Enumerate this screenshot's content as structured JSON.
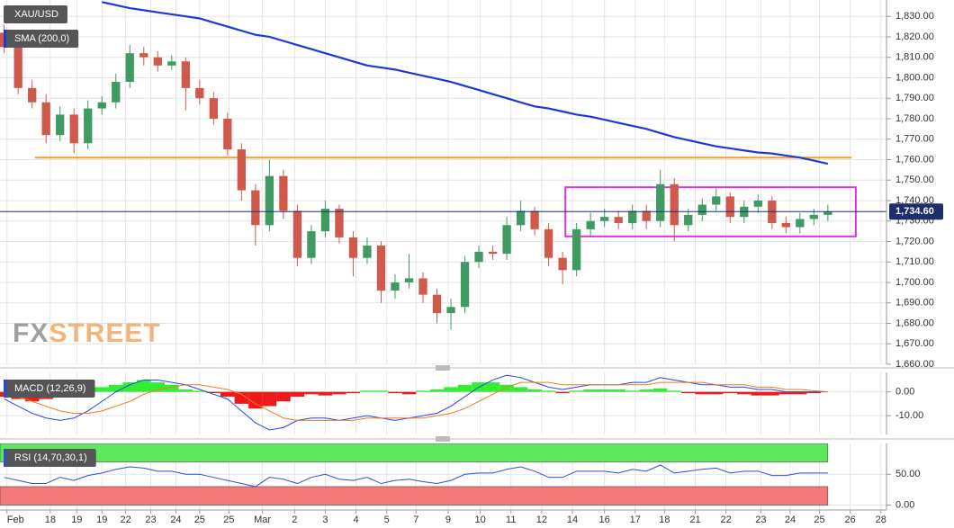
{
  "chart_data": [
    {
      "type": "candlestick",
      "title": "XAU/USD",
      "watermark": [
        "FX",
        "STREET"
      ],
      "watermark_colors": [
        "#a0a0a0",
        "#f2b47a"
      ],
      "ylim": [
        1660,
        1838
      ],
      "yticks": [
        {
          "value": 1660,
          "label": "1,660.00"
        },
        {
          "value": 1670,
          "label": "1,670.00"
        },
        {
          "value": 1680,
          "label": "1,680.00"
        },
        {
          "value": 1690,
          "label": "1,690.00"
        },
        {
          "value": 1700,
          "label": "1,700.00"
        },
        {
          "value": 1710,
          "label": "1,710.00"
        },
        {
          "value": 1720,
          "label": "1,720.00"
        },
        {
          "value": 1730,
          "label": "1,730.00"
        },
        {
          "value": 1740,
          "label": "1,740.00"
        },
        {
          "value": 1750,
          "label": "1,750.00"
        },
        {
          "value": 1760,
          "label": "1,760.00"
        },
        {
          "value": 1770,
          "label": "1,770.00"
        },
        {
          "value": 1780,
          "label": "1,780.00"
        },
        {
          "value": 1790,
          "label": "1,790.00"
        },
        {
          "value": 1800,
          "label": "1,800.00"
        },
        {
          "value": 1810,
          "label": "1,810.00"
        },
        {
          "value": 1820,
          "label": "1,820.00"
        },
        {
          "value": 1830,
          "label": "1,830.00"
        }
      ],
      "grid": true,
      "candles": {
        "up_color": "#3f9b62",
        "down_color": "#cf5a4c",
        "open": [
          1822,
          1815,
          1795,
          1788,
          1772,
          1782,
          1768,
          1785,
          1788,
          1798,
          1812,
          1810,
          1806,
          1808,
          1795,
          1790,
          1780,
          1765,
          1745,
          1728,
          1752,
          1735,
          1712,
          1725,
          1736,
          1722,
          1712,
          1718,
          1696,
          1700,
          1702,
          1694,
          1685,
          1688,
          1710,
          1715,
          1714,
          1728,
          1735,
          1726,
          1712,
          1706,
          1726,
          1730,
          1732,
          1729,
          1735,
          1730,
          1748,
          1728,
          1733,
          1738,
          1742,
          1732,
          1737,
          1740,
          1729,
          1727,
          1731,
          1733
        ],
        "high": [
          1826,
          1818,
          1799,
          1792,
          1786,
          1785,
          1789,
          1791,
          1802,
          1816,
          1815,
          1813,
          1811,
          1810,
          1799,
          1793,
          1783,
          1768,
          1748,
          1760,
          1755,
          1738,
          1728,
          1740,
          1738,
          1725,
          1722,
          1720,
          1704,
          1714,
          1705,
          1697,
          1692,
          1713,
          1718,
          1718,
          1732,
          1740,
          1737,
          1729,
          1715,
          1729,
          1734,
          1736,
          1735,
          1738,
          1738,
          1755,
          1751,
          1736,
          1741,
          1746,
          1744,
          1740,
          1743,
          1742,
          1732,
          1734,
          1736,
          1738
        ],
        "low": [
          1812,
          1792,
          1785,
          1768,
          1769,
          1763,
          1765,
          1782,
          1785,
          1795,
          1806,
          1803,
          1804,
          1784,
          1787,
          1777,
          1762,
          1740,
          1718,
          1725,
          1731,
          1708,
          1709,
          1722,
          1719,
          1703,
          1709,
          1690,
          1692,
          1697,
          1690,
          1680,
          1677,
          1685,
          1707,
          1711,
          1711,
          1725,
          1723,
          1708,
          1699,
          1703,
          1722,
          1727,
          1726,
          1726,
          1726,
          1727,
          1720,
          1725,
          1730,
          1735,
          1729,
          1729,
          1734,
          1726,
          1724,
          1724,
          1728,
          1730
        ],
        "close": [
          1815,
          1795,
          1788,
          1772,
          1782,
          1768,
          1785,
          1788,
          1798,
          1812,
          1810,
          1806,
          1808,
          1795,
          1790,
          1780,
          1765,
          1745,
          1728,
          1752,
          1735,
          1712,
          1725,
          1736,
          1722,
          1712,
          1718,
          1696,
          1700,
          1702,
          1694,
          1685,
          1688,
          1710,
          1715,
          1714,
          1728,
          1735,
          1726,
          1712,
          1706,
          1726,
          1730,
          1732,
          1729,
          1735,
          1730,
          1748,
          1728,
          1733,
          1738,
          1742,
          1732,
          1737,
          1740,
          1729,
          1727,
          1731,
          1733,
          1734.6
        ]
      },
      "sma": {
        "name": "SMA (200,0)",
        "color": "#1f37d8",
        "values": [
          null,
          null,
          null,
          null,
          null,
          null,
          null,
          1837,
          1835.5,
          1834,
          1833,
          1832,
          1831,
          1830,
          1829,
          1827,
          1825,
          1823,
          1821,
          1820,
          1818,
          1816,
          1814,
          1812,
          1810,
          1808,
          1806,
          1805,
          1804,
          1802.5,
          1801,
          1799.5,
          1798,
          1796,
          1794,
          1792,
          1790,
          1788,
          1786,
          1785,
          1783.5,
          1782,
          1781,
          1779.5,
          1778,
          1776.5,
          1775,
          1773,
          1771,
          1769.5,
          1768,
          1766.5,
          1765.5,
          1764.5,
          1763.5,
          1763,
          1762,
          1761,
          1759.5,
          1758
        ]
      },
      "resistance": {
        "value": 1761,
        "x": [
          2.2,
          60.7
        ],
        "color": "#f0a030"
      },
      "range_box": {
        "x": [
          40.2,
          61
        ],
        "y": [
          1722.5,
          1746.5
        ],
        "color": "#e030e0"
      },
      "last_price": {
        "value": 1734.6,
        "label": "1,734.60",
        "color": "#1c2f6b"
      }
    },
    {
      "type": "macd",
      "title": "MACD (12,26,9)",
      "ylim": [
        -17.9,
        8.2
      ],
      "yticks": [
        {
          "value": 0,
          "label": "0.00"
        },
        {
          "value": -10,
          "label": "-10.00"
        }
      ],
      "histogram": {
        "up_color": "#33ee33",
        "down_color": "#ee1a1a",
        "values": [
          -2,
          -3,
          -4,
          -3,
          -2,
          -1,
          1,
          2,
          3,
          4,
          5,
          4,
          3,
          1,
          0.5,
          -0.5,
          -2,
          -5,
          -7,
          -6,
          -4,
          -2,
          -1,
          -1.5,
          -1,
          -0.5,
          0.5,
          0.5,
          -0.5,
          -1,
          0.5,
          1,
          2,
          3,
          4,
          4,
          3,
          2,
          1,
          0.5,
          -0.5,
          0.5,
          1,
          1,
          1,
          0.5,
          1,
          1.5,
          0.5,
          -0.5,
          -1,
          -1,
          -0.5,
          -1,
          -1.5,
          -1.5,
          -1,
          -1,
          -0.5,
          0
        ]
      },
      "macd_line": {
        "color": "#2347e6",
        "values": [
          -3,
          -6,
          -9,
          -11,
          -12,
          -11,
          -8,
          -4,
          0,
          3,
          5,
          5,
          4,
          3,
          1,
          -1,
          -3,
          -8,
          -13,
          -16,
          -15,
          -12,
          -11,
          -11,
          -12,
          -11,
          -10,
          -11,
          -12,
          -11,
          -10,
          -9,
          -6,
          -2,
          2,
          5,
          7,
          6,
          4,
          2,
          1,
          2,
          3,
          3,
          3,
          4,
          4,
          6,
          5,
          4,
          3,
          3,
          2,
          2,
          1,
          1,
          0,
          0,
          0,
          0
        ]
      },
      "signal_line": {
        "color": "#f07a20",
        "values": [
          0,
          -2,
          -4,
          -6,
          -8,
          -9,
          -9,
          -8,
          -6,
          -4,
          -1,
          1,
          2,
          3,
          3,
          2,
          1,
          -1,
          -5,
          -8,
          -11,
          -12,
          -12,
          -12,
          -12,
          -12,
          -11,
          -11,
          -11,
          -11,
          -11,
          -10,
          -9,
          -7,
          -4,
          -1,
          2,
          4,
          4,
          4,
          3,
          3,
          3,
          3,
          3,
          3,
          3,
          4,
          4,
          4,
          4,
          3,
          3,
          3,
          2,
          2,
          1,
          1,
          0.5,
          0
        ]
      }
    },
    {
      "type": "rsi",
      "title": "RSI (14,70,30,1)",
      "ylim": [
        -8,
        100
      ],
      "yticks": [
        {
          "value": 50,
          "label": "50.00"
        },
        {
          "value": 0,
          "label": "0.00"
        }
      ],
      "overbought": 70,
      "oversold": 30,
      "overbought_color": "#5ee85e",
      "oversold_color": "#f47a7a",
      "color": "#2f4fd0",
      "values": [
        45,
        40,
        35,
        35,
        45,
        40,
        48,
        52,
        58,
        62,
        60,
        55,
        55,
        50,
        50,
        45,
        40,
        35,
        30,
        45,
        42,
        35,
        45,
        50,
        42,
        40,
        45,
        35,
        40,
        42,
        38,
        35,
        40,
        50,
        52,
        52,
        58,
        62,
        55,
        45,
        45,
        55,
        55,
        55,
        52,
        58,
        55,
        65,
        52,
        55,
        58,
        60,
        52,
        55,
        55,
        48,
        48,
        52,
        52,
        52
      ],
      "xlim": [
        -0.3,
        63.2
      ],
      "xticks": [
        {
          "value": 0.2,
          "label": "Feb"
        },
        {
          "value": 3.3,
          "label": "18"
        },
        {
          "value": 5.2,
          "label": "19"
        },
        {
          "value": 7,
          "label": "19"
        },
        {
          "value": 8.7,
          "label": "22"
        },
        {
          "value": 10.5,
          "label": "23"
        },
        {
          "value": 12.3,
          "label": "24"
        },
        {
          "value": 14,
          "label": "25"
        },
        {
          "value": 16.1,
          "label": "25"
        },
        {
          "value": 18.5,
          "label": "Mar"
        },
        {
          "value": 20.8,
          "label": "2"
        },
        {
          "value": 23,
          "label": "3"
        },
        {
          "value": 25.2,
          "label": "4"
        },
        {
          "value": 27.4,
          "label": "5"
        },
        {
          "value": 29.5,
          "label": "7"
        },
        {
          "value": 31.8,
          "label": "9"
        },
        {
          "value": 34.1,
          "label": "10"
        },
        {
          "value": 36.3,
          "label": "11"
        },
        {
          "value": 38.5,
          "label": "12"
        },
        {
          "value": 40.7,
          "label": "14"
        },
        {
          "value": 43,
          "label": "16"
        },
        {
          "value": 45.2,
          "label": "17"
        },
        {
          "value": 47.3,
          "label": "18"
        },
        {
          "value": 49.5,
          "label": "21"
        },
        {
          "value": 51.7,
          "label": "22"
        },
        {
          "value": 54.2,
          "label": "23"
        },
        {
          "value": 56.3,
          "label": "24"
        },
        {
          "value": 58.4,
          "label": "25"
        },
        {
          "value": 60.6,
          "label": "26"
        },
        {
          "value": 62.8,
          "label": "28"
        }
      ]
    }
  ]
}
